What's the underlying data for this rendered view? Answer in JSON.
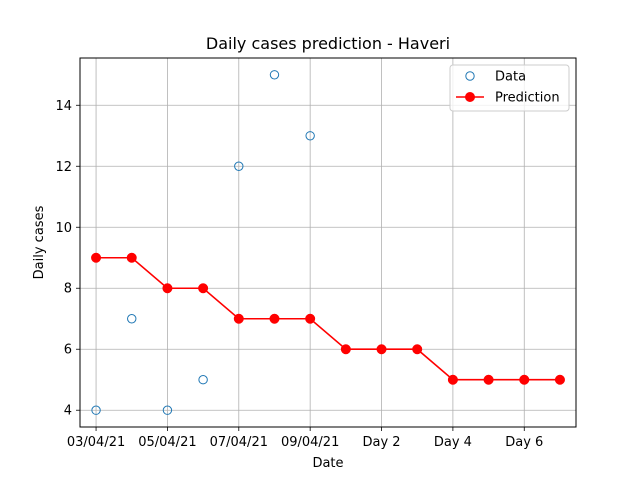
{
  "chart_data": {
    "type": "line",
    "title": "Daily cases prediction - Haveri",
    "xlabel": "Date",
    "ylabel": "Daily cases",
    "grid": true,
    "legend_position": "top-right",
    "xlim": [
      -0.45,
      13.45
    ],
    "ylim": [
      3.45,
      15.55
    ],
    "x_ticks": [
      {
        "x": 0,
        "label": "03/04/21"
      },
      {
        "x": 2,
        "label": "05/04/21"
      },
      {
        "x": 4,
        "label": "07/04/21"
      },
      {
        "x": 6,
        "label": "09/04/21"
      },
      {
        "x": 8,
        "label": "Day 2"
      },
      {
        "x": 10,
        "label": "Day 4"
      },
      {
        "x": 12,
        "label": "Day 6"
      }
    ],
    "y_ticks": [
      4,
      6,
      8,
      10,
      12,
      14
    ],
    "series": [
      {
        "name": "Data",
        "style": "markers-open",
        "color": "#1f77b4",
        "x": [
          0,
          1,
          2,
          3,
          4,
          5,
          6
        ],
        "values": [
          4,
          7,
          4,
          5,
          12,
          15,
          13
        ]
      },
      {
        "name": "Prediction",
        "style": "line-markers",
        "color": "#ff0000",
        "x": [
          0,
          1,
          2,
          3,
          4,
          5,
          6,
          7,
          8,
          9,
          10,
          11,
          12,
          13
        ],
        "values": [
          9,
          9,
          8,
          8,
          7,
          7,
          7,
          6,
          6,
          6,
          5,
          5,
          5,
          5
        ]
      }
    ]
  }
}
